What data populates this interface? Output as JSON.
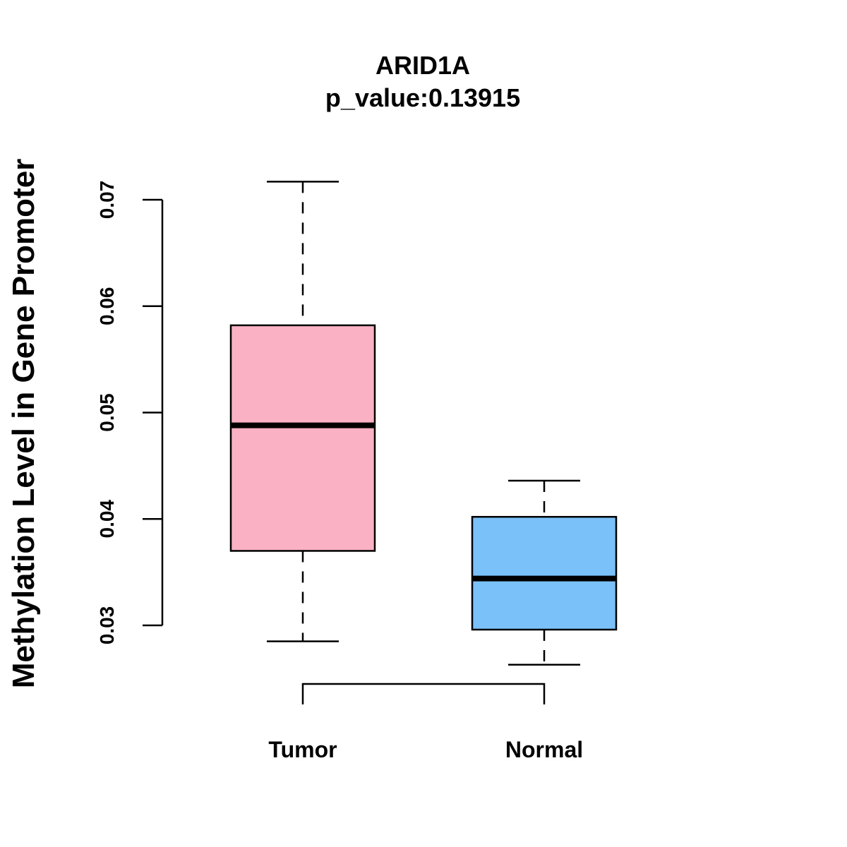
{
  "chart_data": {
    "type": "boxplot",
    "title": "ARID1A",
    "subtitle": "p_value:0.13915",
    "xlabel": "",
    "ylabel": "Methylation Level in Gene Promoter",
    "ylim": [
      0.03,
      0.07
    ],
    "yticks": [
      0.03,
      0.04,
      0.05,
      0.06,
      0.07
    ],
    "ytick_labels": [
      "0.03",
      "0.04",
      "0.05",
      "0.06",
      "0.07"
    ],
    "grid": false,
    "categories": [
      "Tumor",
      "Normal"
    ],
    "boxes": [
      {
        "name": "Tumor",
        "whisker_low": 0.0285,
        "q1": 0.037,
        "median": 0.0488,
        "q3": 0.0582,
        "whisker_high": 0.0717,
        "color": "#FBB1C4"
      },
      {
        "name": "Normal",
        "whisker_low": 0.0263,
        "q1": 0.0296,
        "median": 0.0344,
        "q3": 0.0402,
        "whisker_high": 0.0436,
        "color": "#79C1F8"
      }
    ],
    "comparison_bracket": [
      "Tumor",
      "Normal"
    ]
  }
}
